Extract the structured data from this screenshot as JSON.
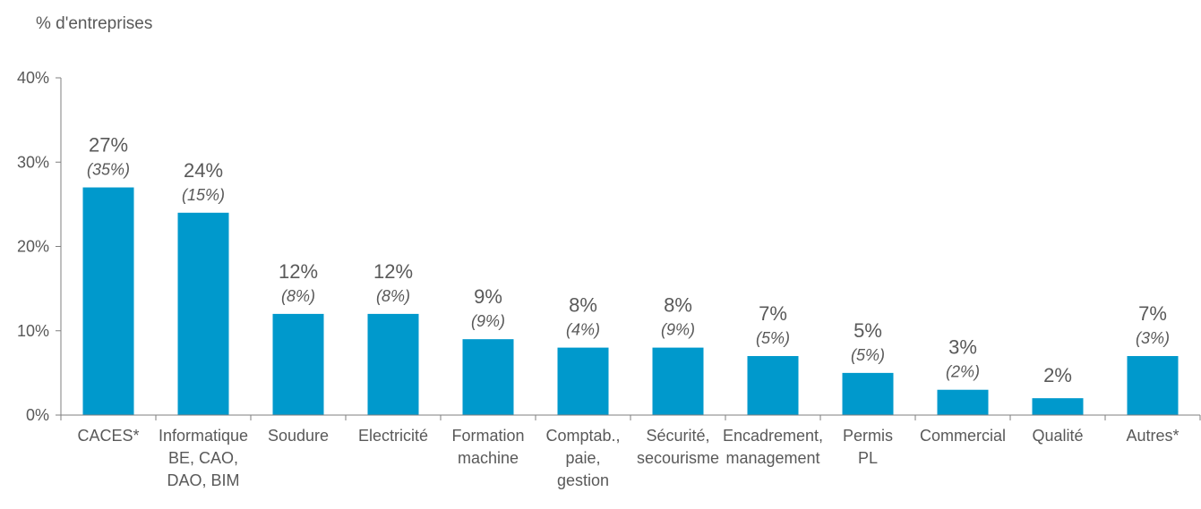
{
  "chart_data": {
    "type": "bar",
    "title": "",
    "ylabel": "% d'entreprises",
    "xlabel": "",
    "ylim": [
      0,
      40
    ],
    "y_ticks": [
      "0%",
      "10%",
      "20%",
      "30%",
      "40%"
    ],
    "grid": false,
    "bar_color": "#0099cc",
    "categories": [
      [
        "CACES*"
      ],
      [
        "Informatique",
        "BE, CAO,",
        "DAO, BIM"
      ],
      [
        "Soudure"
      ],
      [
        "Electricité"
      ],
      [
        "Formation",
        "machine"
      ],
      [
        "Comptab.,",
        "paie,",
        "gestion"
      ],
      [
        "Sécurité,",
        "secourisme"
      ],
      [
        "Encadrement,",
        "management"
      ],
      [
        "Permis",
        "PL"
      ],
      [
        "Commercial"
      ],
      [
        "Qualité"
      ],
      [
        "Autres*"
      ]
    ],
    "series": [
      {
        "values": [
          27,
          24,
          12,
          12,
          9,
          8,
          8,
          7,
          5,
          3,
          2,
          7
        ]
      }
    ],
    "value_labels": [
      "27%",
      "24%",
      "12%",
      "12%",
      "9%",
      "8%",
      "8%",
      "7%",
      "5%",
      "3%",
      "2%",
      "7%"
    ],
    "secondary_labels": [
      "(35%)",
      "(15%)",
      "(8%)",
      "(8%)",
      "(9%)",
      "(4%)",
      "(9%)",
      "(5%)",
      "(5%)",
      "(2%)",
      "",
      "(3%)"
    ]
  }
}
